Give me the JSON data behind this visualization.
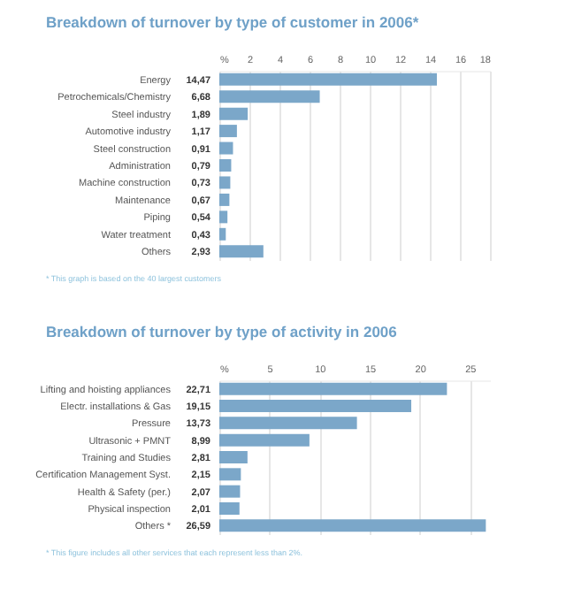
{
  "chart_data": [
    {
      "type": "bar",
      "orientation": "horizontal",
      "title": "Breakdown of turnover by type of customer in 2006*",
      "categories": [
        "Energy",
        "Petrochemicals/Chemistry",
        "Steel industry",
        "Automotive industry",
        "Steel construction",
        "Administration",
        "Machine construction",
        "Maintenance",
        "Piping",
        "Water treatment",
        "Others"
      ],
      "values": [
        14.47,
        6.68,
        1.89,
        1.17,
        0.91,
        0.79,
        0.73,
        0.67,
        0.54,
        0.43,
        2.93
      ],
      "value_labels": [
        "14,47",
        "6,68",
        "1,89",
        "1,17",
        "0,91",
        "0,79",
        "0,73",
        "0,67",
        "0,54",
        "0,43",
        "2,93"
      ],
      "color": "#7ba7c9",
      "xlim": [
        0,
        18
      ],
      "xticks": [
        {
          "value": 0,
          "label": "%"
        },
        2,
        4,
        6,
        8,
        10,
        12,
        14,
        16,
        18
      ],
      "grid": "x",
      "annotations": [
        "* This graph is based on the 40 largest customers"
      ]
    },
    {
      "type": "bar",
      "orientation": "horizontal",
      "title": "Breakdown of turnover by type of activity in 2006",
      "categories": [
        "Lifting and hoisting appliances",
        "Electr. installations & Gas",
        "Pressure",
        "Ultrasonic + PMNT",
        "Training and Studies",
        "Certification Management Syst.",
        "Health & Safety (per.)",
        "Physical inspection",
        "Others *"
      ],
      "values": [
        22.71,
        19.15,
        13.73,
        8.99,
        2.81,
        2.15,
        2.07,
        2.01,
        26.59
      ],
      "value_labels": [
        "22,71",
        "19,15",
        "13,73",
        "8,99",
        "2,81",
        "2,15",
        "2,07",
        "2,01",
        "26,59"
      ],
      "color": "#7ba7c9",
      "xlim": [
        0,
        27
      ],
      "xticks": [
        {
          "value": 0,
          "label": "%"
        },
        5,
        10,
        15,
        20,
        25
      ],
      "grid": "x",
      "annotations": [
        "* This figure includes all other services that each represent less than 2%."
      ]
    }
  ]
}
